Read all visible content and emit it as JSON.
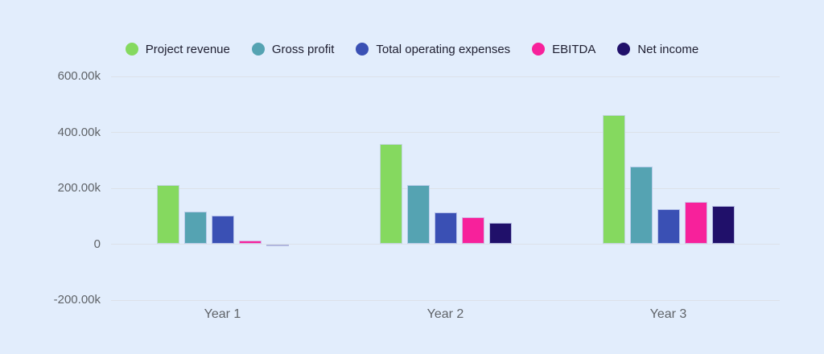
{
  "app": {
    "background_color": "#E2EDFC",
    "gridline_color": "#DCE1E8",
    "axis_text_color": "#5F6368",
    "legend_text_color": "#1E1E30"
  },
  "chart_data": {
    "type": "bar",
    "title": "",
    "categories": [
      "Year 1",
      "Year 2",
      "Year 3"
    ],
    "series": [
      {
        "name": "Project revenue",
        "color": "#85D95F",
        "values": [
          212000,
          358000,
          462000
        ]
      },
      {
        "name": "Gross profit",
        "color": "#55A3B2",
        "values": [
          116000,
          211000,
          278000
        ]
      },
      {
        "name": "Total operating expenses",
        "color": "#3A50B4",
        "values": [
          103000,
          114000,
          126000
        ]
      },
      {
        "name": "EBITDA",
        "color": "#F7219B",
        "values": [
          13000,
          97000,
          152000
        ]
      },
      {
        "name": "Net income",
        "color": "#20106A",
        "values": [
          -6000,
          77000,
          136000
        ]
      }
    ],
    "y_ticks": [
      {
        "value": 600000,
        "label": "600.00k"
      },
      {
        "value": 400000,
        "label": "400.00k"
      },
      {
        "value": 200000,
        "label": "200.00k"
      },
      {
        "value": 0,
        "label": "0"
      },
      {
        "value": -200000,
        "label": "-200.00k"
      }
    ],
    "ylim": [
      -200000,
      600000
    ],
    "grid": true,
    "legend_position": "top"
  }
}
